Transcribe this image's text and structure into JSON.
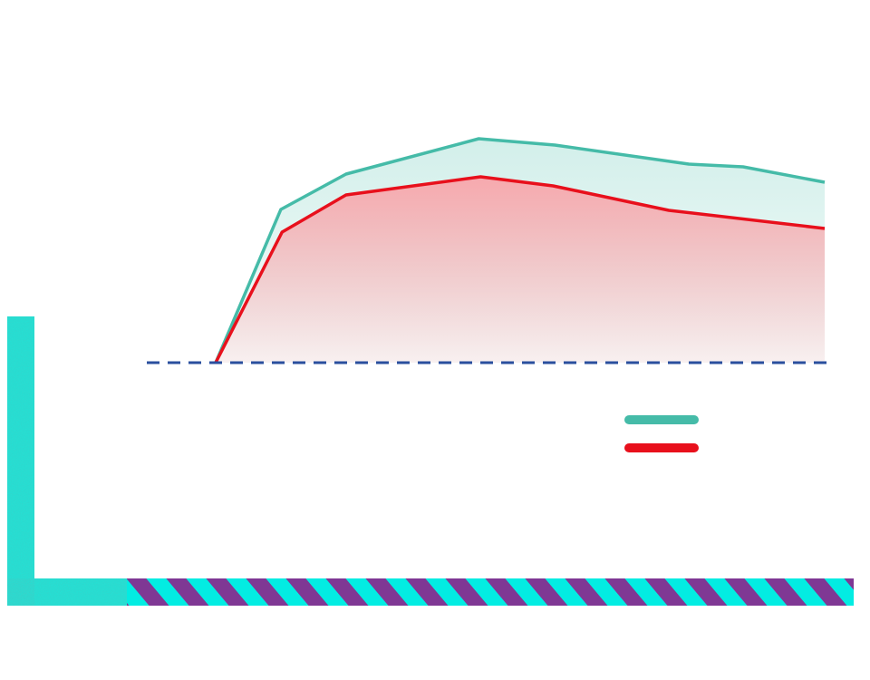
{
  "chart_data": {
    "type": "area",
    "xlim": [
      0,
      100
    ],
    "ylim": [
      0,
      100
    ],
    "baseline": 0,
    "baseline_color": "#2a4f9e",
    "series": [
      {
        "color": "#45bba8",
        "fill": "#d2efea",
        "x": [
          0,
          10.7,
          21.4,
          43.2,
          55.7,
          77.7,
          86.6,
          100
        ],
        "values": [
          0,
          67.6,
          83.2,
          98.8,
          96,
          87.6,
          86.4,
          79.6
        ]
      },
      {
        "color": "#e8101c",
        "fill": "#f7a9ae",
        "x": [
          0,
          10.9,
          21.4,
          43.5,
          55.4,
          74.4,
          100
        ],
        "values": [
          0,
          57.6,
          74,
          82,
          78,
          67.2,
          59.2
        ]
      }
    ]
  }
}
